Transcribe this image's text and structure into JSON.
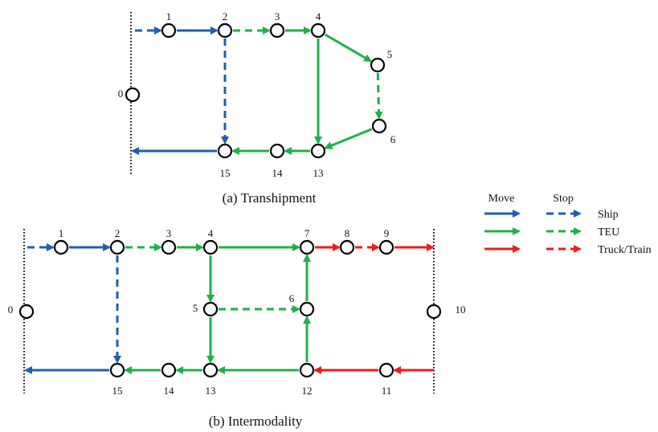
{
  "diagram_a": {
    "caption": "(a) Transhipment",
    "nodes": [
      {
        "id": "0",
        "label": "0"
      },
      {
        "id": "1",
        "label": "1"
      },
      {
        "id": "2",
        "label": "2"
      },
      {
        "id": "3",
        "label": "3"
      },
      {
        "id": "4",
        "label": "4"
      },
      {
        "id": "5",
        "label": "5"
      },
      {
        "id": "6",
        "label": "6"
      },
      {
        "id": "13",
        "label": "13"
      },
      {
        "id": "14",
        "label": "14"
      },
      {
        "id": "15",
        "label": "15"
      }
    ],
    "edges": [
      {
        "from": "boundary",
        "to": "1",
        "mode": "ship",
        "kind": "stop"
      },
      {
        "from": "1",
        "to": "2",
        "mode": "ship",
        "kind": "move"
      },
      {
        "from": "2",
        "to": "3",
        "mode": "teu",
        "kind": "stop"
      },
      {
        "from": "3",
        "to": "4",
        "mode": "teu",
        "kind": "move"
      },
      {
        "from": "4",
        "to": "5",
        "mode": "teu",
        "kind": "move"
      },
      {
        "from": "5",
        "to": "6",
        "mode": "teu",
        "kind": "stop"
      },
      {
        "from": "6",
        "to": "13",
        "mode": "teu",
        "kind": "move"
      },
      {
        "from": "4",
        "to": "13",
        "mode": "teu",
        "kind": "move"
      },
      {
        "from": "13",
        "to": "14",
        "mode": "teu",
        "kind": "move"
      },
      {
        "from": "14",
        "to": "15",
        "mode": "teu",
        "kind": "move"
      },
      {
        "from": "2",
        "to": "15",
        "mode": "ship",
        "kind": "stop"
      },
      {
        "from": "15",
        "to": "boundary",
        "mode": "ship",
        "kind": "move"
      }
    ]
  },
  "diagram_b": {
    "caption": "(b) Intermodality",
    "nodes": [
      {
        "id": "0",
        "label": "0"
      },
      {
        "id": "1",
        "label": "1"
      },
      {
        "id": "2",
        "label": "2"
      },
      {
        "id": "3",
        "label": "3"
      },
      {
        "id": "4",
        "label": "4"
      },
      {
        "id": "5",
        "label": "5"
      },
      {
        "id": "6",
        "label": "6"
      },
      {
        "id": "7",
        "label": "7"
      },
      {
        "id": "8",
        "label": "8"
      },
      {
        "id": "9",
        "label": "9"
      },
      {
        "id": "10",
        "label": "10"
      },
      {
        "id": "11",
        "label": "11"
      },
      {
        "id": "12",
        "label": "12"
      },
      {
        "id": "13",
        "label": "13"
      },
      {
        "id": "14",
        "label": "14"
      },
      {
        "id": "15",
        "label": "15"
      }
    ],
    "edges": [
      {
        "from": "boundary-left",
        "to": "1",
        "mode": "ship",
        "kind": "stop"
      },
      {
        "from": "1",
        "to": "2",
        "mode": "ship",
        "kind": "move"
      },
      {
        "from": "2",
        "to": "3",
        "mode": "teu",
        "kind": "stop"
      },
      {
        "from": "3",
        "to": "4",
        "mode": "teu",
        "kind": "move"
      },
      {
        "from": "4",
        "to": "7",
        "mode": "teu",
        "kind": "move"
      },
      {
        "from": "7",
        "to": "8",
        "mode": "truck_train",
        "kind": "move"
      },
      {
        "from": "8",
        "to": "9",
        "mode": "truck_train",
        "kind": "stop"
      },
      {
        "from": "9",
        "to": "boundary-right",
        "mode": "truck_train",
        "kind": "move"
      },
      {
        "from": "4",
        "to": "5",
        "mode": "teu",
        "kind": "move"
      },
      {
        "from": "5",
        "to": "6",
        "mode": "teu",
        "kind": "stop"
      },
      {
        "from": "6",
        "to": "7",
        "mode": "teu",
        "kind": "move"
      },
      {
        "from": "5",
        "to": "13",
        "mode": "teu",
        "kind": "move"
      },
      {
        "from": "12",
        "to": "6",
        "mode": "teu",
        "kind": "move"
      },
      {
        "from": "boundary-right",
        "to": "11",
        "mode": "truck_train",
        "kind": "move"
      },
      {
        "from": "11",
        "to": "12",
        "mode": "truck_train",
        "kind": "move"
      },
      {
        "from": "12",
        "to": "13",
        "mode": "teu",
        "kind": "move"
      },
      {
        "from": "13",
        "to": "14",
        "mode": "teu",
        "kind": "move"
      },
      {
        "from": "14",
        "to": "15",
        "mode": "teu",
        "kind": "move"
      },
      {
        "from": "2",
        "to": "15",
        "mode": "ship",
        "kind": "stop"
      },
      {
        "from": "15",
        "to": "boundary-left",
        "mode": "ship",
        "kind": "move"
      }
    ]
  },
  "legend": {
    "move_header": "Move",
    "stop_header": "Stop",
    "rows": [
      {
        "label": "Ship",
        "mode": "ship"
      },
      {
        "label": "TEU",
        "mode": "teu"
      },
      {
        "label": "Truck/Train",
        "mode": "truck_train"
      }
    ]
  },
  "colors": {
    "ship": "#1f5fae",
    "teu": "#1fb04a",
    "truck_train": "#ee1c1c"
  }
}
